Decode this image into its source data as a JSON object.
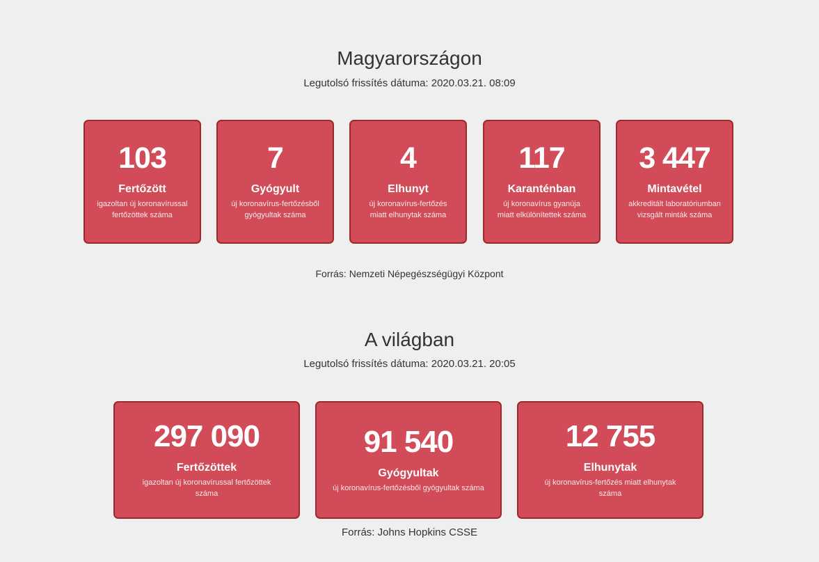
{
  "hungary": {
    "title": "Magyarországon",
    "updated": "Legutolsó frissítés dátuma: 2020.03.21. 08:09",
    "cards": [
      {
        "value": "103",
        "label": "Fertőzött",
        "desc": "igazoltan új koronavírussal fertőzöttek száma"
      },
      {
        "value": "7",
        "label": "Gyógyult",
        "desc": "új koronavírus-fertőzésből gyógyultak száma"
      },
      {
        "value": "4",
        "label": "Elhunyt",
        "desc": "új koronavírus-fertőzés miatt elhunytak száma"
      },
      {
        "value": "117",
        "label": "Karanténban",
        "desc": "új koronavírus gyanúja miatt elkülönítettek száma"
      },
      {
        "value": "3 447",
        "label": "Mintavétel",
        "desc": "akkreditált laboratóriumban vizsgált minták száma"
      }
    ],
    "source": "Forrás: Nemzeti Népegészségügyi Központ"
  },
  "world": {
    "title": "A világban",
    "updated": "Legutolsó frissítés dátuma: 2020.03.21. 20:05",
    "cards": [
      {
        "value": "297 090",
        "label": "Fertőzöttek",
        "desc": "igazoltan új koronavírussal fertőzöttek száma"
      },
      {
        "value": "91 540",
        "label": "Gyógyultak",
        "desc": "új koronavírus-fertőzésből gyógyultak száma"
      },
      {
        "value": "12 755",
        "label": "Elhunytak",
        "desc": "új koronavírus-fertőzés miatt elhunytak száma"
      }
    ],
    "source": "Forrás: Johns Hopkins CSSE"
  },
  "colors": {
    "card": "#d14b58",
    "card_border": "#9b2a2a",
    "background": "#efefef"
  }
}
